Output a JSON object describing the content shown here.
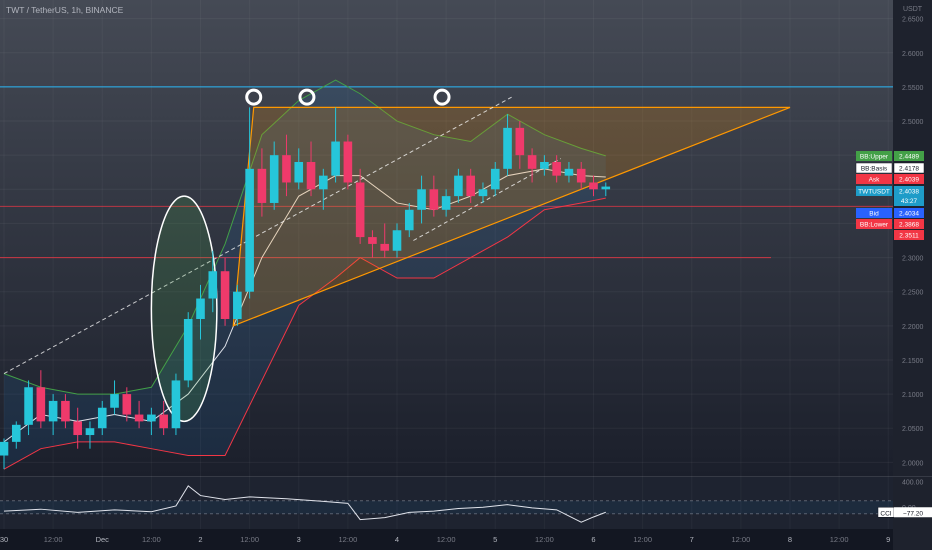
{
  "header": {
    "symbol_title": "TWT / TetherUS, 1h, BINANCE"
  },
  "price_axis": {
    "currency": "USDT",
    "ticks": [
      "2.6500",
      "2.6000",
      "2.5500",
      "2.5000",
      "2.4500",
      "2.4000",
      "2.3500",
      "2.3000",
      "2.2500",
      "2.2000",
      "2.1500",
      "2.1000",
      "2.0500",
      "2.0000"
    ]
  },
  "time_axis": {
    "ticks": [
      "30",
      "12:00",
      "Dec",
      "12:00",
      "2",
      "12:00",
      "3",
      "12:00",
      "4",
      "12:00",
      "5",
      "12:00",
      "6",
      "12:00",
      "7",
      "12:00",
      "8",
      "12:00",
      "9"
    ]
  },
  "labels": [
    {
      "key": "bb_upper",
      "name": "BB:Upper",
      "value": "2.4489",
      "color": "#43a047"
    },
    {
      "key": "bb_basis",
      "name": "BB:Basis",
      "value": "2.4178",
      "color": "#ffffff"
    },
    {
      "key": "ask",
      "name": "Ask",
      "value": "2.4039",
      "color": "#f23645"
    },
    {
      "key": "symbol",
      "name": "TWTUSDT",
      "value": "2.4038",
      "sub": "43:27",
      "color": "#1e9cc8"
    },
    {
      "key": "bid",
      "name": "Bid",
      "value": "2.4034",
      "color": "#2962ff"
    },
    {
      "key": "bb_lower",
      "name": "BB:Lower",
      "value": "2.3868",
      "color": "#f23645"
    },
    {
      "key": "extra",
      "name": "",
      "value": "2.3511",
      "color": "#f23645"
    }
  ],
  "cci_panel": {
    "name": "CCI",
    "value": "−77.20",
    "axis_ticks": [
      "400.00",
      "0.00"
    ]
  },
  "chart_data": {
    "type": "candlestick",
    "symbol": "TWT / TetherUS",
    "interval": "1h",
    "exchange": "BINANCE",
    "ylim": [
      1.98,
      2.67
    ],
    "xlim": [
      0,
      192
    ],
    "resistance_level": 2.55,
    "support_levels": [
      2.375,
      2.3
    ],
    "candles": [
      {
        "t": 0,
        "o": 2.01,
        "h": 2.035,
        "l": 1.99,
        "c": 2.03
      },
      {
        "t": 3,
        "o": 2.03,
        "h": 2.06,
        "l": 2.02,
        "c": 2.055
      },
      {
        "t": 6,
        "o": 2.055,
        "h": 2.12,
        "l": 2.04,
        "c": 2.11
      },
      {
        "t": 9,
        "o": 2.11,
        "h": 2.135,
        "l": 2.05,
        "c": 2.06
      },
      {
        "t": 12,
        "o": 2.06,
        "h": 2.1,
        "l": 2.04,
        "c": 2.09
      },
      {
        "t": 15,
        "o": 2.09,
        "h": 2.1,
        "l": 2.05,
        "c": 2.06
      },
      {
        "t": 18,
        "o": 2.06,
        "h": 2.08,
        "l": 2.02,
        "c": 2.04
      },
      {
        "t": 21,
        "o": 2.04,
        "h": 2.06,
        "l": 2.02,
        "c": 2.05
      },
      {
        "t": 24,
        "o": 2.05,
        "h": 2.09,
        "l": 2.04,
        "c": 2.08
      },
      {
        "t": 27,
        "o": 2.08,
        "h": 2.12,
        "l": 2.07,
        "c": 2.1
      },
      {
        "t": 30,
        "o": 2.1,
        "h": 2.11,
        "l": 2.06,
        "c": 2.07
      },
      {
        "t": 33,
        "o": 2.07,
        "h": 2.09,
        "l": 2.05,
        "c": 2.06
      },
      {
        "t": 36,
        "o": 2.06,
        "h": 2.08,
        "l": 2.04,
        "c": 2.07
      },
      {
        "t": 39,
        "o": 2.07,
        "h": 2.09,
        "l": 2.04,
        "c": 2.05
      },
      {
        "t": 42,
        "o": 2.05,
        "h": 2.13,
        "l": 2.04,
        "c": 2.12
      },
      {
        "t": 45,
        "o": 2.12,
        "h": 2.22,
        "l": 2.11,
        "c": 2.21
      },
      {
        "t": 48,
        "o": 2.21,
        "h": 2.26,
        "l": 2.18,
        "c": 2.24
      },
      {
        "t": 51,
        "o": 2.24,
        "h": 2.31,
        "l": 2.22,
        "c": 2.28
      },
      {
        "t": 54,
        "o": 2.28,
        "h": 2.3,
        "l": 2.2,
        "c": 2.21
      },
      {
        "t": 57,
        "o": 2.21,
        "h": 2.26,
        "l": 2.2,
        "c": 2.25
      },
      {
        "t": 60,
        "o": 2.25,
        "h": 2.52,
        "l": 2.24,
        "c": 2.43
      },
      {
        "t": 63,
        "o": 2.43,
        "h": 2.46,
        "l": 2.36,
        "c": 2.38
      },
      {
        "t": 66,
        "o": 2.38,
        "h": 2.47,
        "l": 2.37,
        "c": 2.45
      },
      {
        "t": 69,
        "o": 2.45,
        "h": 2.48,
        "l": 2.39,
        "c": 2.41
      },
      {
        "t": 72,
        "o": 2.41,
        "h": 2.46,
        "l": 2.4,
        "c": 2.44
      },
      {
        "t": 75,
        "o": 2.44,
        "h": 2.47,
        "l": 2.39,
        "c": 2.4
      },
      {
        "t": 78,
        "o": 2.4,
        "h": 2.43,
        "l": 2.37,
        "c": 2.42
      },
      {
        "t": 81,
        "o": 2.42,
        "h": 2.52,
        "l": 2.41,
        "c": 2.47
      },
      {
        "t": 84,
        "o": 2.47,
        "h": 2.48,
        "l": 2.4,
        "c": 2.41
      },
      {
        "t": 87,
        "o": 2.41,
        "h": 2.43,
        "l": 2.32,
        "c": 2.33
      },
      {
        "t": 90,
        "o": 2.33,
        "h": 2.34,
        "l": 2.3,
        "c": 2.32
      },
      {
        "t": 93,
        "o": 2.32,
        "h": 2.35,
        "l": 2.3,
        "c": 2.31
      },
      {
        "t": 96,
        "o": 2.31,
        "h": 2.35,
        "l": 2.3,
        "c": 2.34
      },
      {
        "t": 99,
        "o": 2.34,
        "h": 2.38,
        "l": 2.33,
        "c": 2.37
      },
      {
        "t": 102,
        "o": 2.37,
        "h": 2.42,
        "l": 2.35,
        "c": 2.4
      },
      {
        "t": 105,
        "o": 2.4,
        "h": 2.42,
        "l": 2.36,
        "c": 2.37
      },
      {
        "t": 108,
        "o": 2.37,
        "h": 2.4,
        "l": 2.36,
        "c": 2.39
      },
      {
        "t": 111,
        "o": 2.39,
        "h": 2.43,
        "l": 2.38,
        "c": 2.42
      },
      {
        "t": 114,
        "o": 2.42,
        "h": 2.43,
        "l": 2.38,
        "c": 2.39
      },
      {
        "t": 117,
        "o": 2.39,
        "h": 2.41,
        "l": 2.38,
        "c": 2.4
      },
      {
        "t": 120,
        "o": 2.4,
        "h": 2.44,
        "l": 2.39,
        "c": 2.43
      },
      {
        "t": 123,
        "o": 2.43,
        "h": 2.51,
        "l": 2.42,
        "c": 2.49
      },
      {
        "t": 126,
        "o": 2.49,
        "h": 2.5,
        "l": 2.43,
        "c": 2.45
      },
      {
        "t": 129,
        "o": 2.45,
        "h": 2.46,
        "l": 2.41,
        "c": 2.43
      },
      {
        "t": 132,
        "o": 2.43,
        "h": 2.45,
        "l": 2.42,
        "c": 2.44
      },
      {
        "t": 135,
        "o": 2.44,
        "h": 2.45,
        "l": 2.41,
        "c": 2.42
      },
      {
        "t": 138,
        "o": 2.42,
        "h": 2.44,
        "l": 2.41,
        "c": 2.43
      },
      {
        "t": 141,
        "o": 2.43,
        "h": 2.44,
        "l": 2.4,
        "c": 2.41
      },
      {
        "t": 144,
        "o": 2.41,
        "h": 2.42,
        "l": 2.39,
        "c": 2.4
      },
      {
        "t": 147,
        "o": 2.4,
        "h": 2.41,
        "l": 2.39,
        "c": 2.404
      }
    ],
    "bb_upper": [
      [
        0,
        2.13
      ],
      [
        9,
        2.11
      ],
      [
        18,
        2.1
      ],
      [
        27,
        2.1
      ],
      [
        36,
        2.11
      ],
      [
        45,
        2.2
      ],
      [
        54,
        2.32
      ],
      [
        63,
        2.48
      ],
      [
        72,
        2.53
      ],
      [
        81,
        2.56
      ],
      [
        87,
        2.54
      ],
      [
        96,
        2.5
      ],
      [
        105,
        2.48
      ],
      [
        114,
        2.47
      ],
      [
        123,
        2.51
      ],
      [
        132,
        2.48
      ],
      [
        141,
        2.46
      ],
      [
        147,
        2.449
      ]
    ],
    "bb_basis": [
      [
        0,
        2.03
      ],
      [
        9,
        2.07
      ],
      [
        18,
        2.06
      ],
      [
        27,
        2.07
      ],
      [
        36,
        2.06
      ],
      [
        45,
        2.1
      ],
      [
        54,
        2.17
      ],
      [
        63,
        2.3
      ],
      [
        72,
        2.39
      ],
      [
        81,
        2.42
      ],
      [
        87,
        2.42
      ],
      [
        96,
        2.38
      ],
      [
        105,
        2.37
      ],
      [
        114,
        2.39
      ],
      [
        123,
        2.42
      ],
      [
        132,
        2.43
      ],
      [
        141,
        2.42
      ],
      [
        147,
        2.418
      ]
    ],
    "bb_lower": [
      [
        0,
        1.99
      ],
      [
        9,
        2.02
      ],
      [
        18,
        2.03
      ],
      [
        27,
        2.03
      ],
      [
        36,
        2.02
      ],
      [
        45,
        2.01
      ],
      [
        54,
        2.01
      ],
      [
        63,
        2.12
      ],
      [
        72,
        2.23
      ],
      [
        81,
        2.27
      ],
      [
        87,
        2.3
      ],
      [
        96,
        2.27
      ],
      [
        105,
        2.27
      ],
      [
        114,
        2.3
      ],
      [
        123,
        2.33
      ],
      [
        132,
        2.37
      ],
      [
        141,
        2.38
      ],
      [
        147,
        2.387
      ]
    ],
    "cci": [
      [
        0,
        -60
      ],
      [
        9,
        -30
      ],
      [
        18,
        -80
      ],
      [
        27,
        -40
      ],
      [
        36,
        -70
      ],
      [
        42,
        20
      ],
      [
        45,
        330
      ],
      [
        48,
        180
      ],
      [
        54,
        120
      ],
      [
        60,
        160
      ],
      [
        69,
        130
      ],
      [
        78,
        90
      ],
      [
        84,
        60
      ],
      [
        87,
        -190
      ],
      [
        93,
        -160
      ],
      [
        99,
        -80
      ],
      [
        105,
        -60
      ],
      [
        111,
        -20
      ],
      [
        117,
        0
      ],
      [
        123,
        40
      ],
      [
        129,
        -10
      ],
      [
        135,
        -40
      ],
      [
        141,
        -230
      ],
      [
        144,
        -150
      ],
      [
        147,
        -77.2
      ]
    ],
    "cci_ylim": [
      -320,
      420
    ],
    "triangle": [
      [
        56,
        2.2
      ],
      [
        61,
        2.52
      ],
      [
        192,
        2.52
      ]
    ],
    "channel_upper": [
      [
        0,
        2.13
      ],
      [
        124,
        2.535
      ]
    ],
    "channel_lower": [
      [
        100,
        2.325
      ],
      [
        136,
        2.445
      ]
    ],
    "ellipse_annotation": {
      "t": 44,
      "price": 2.225,
      "rt": 8,
      "rprice": 0.165
    },
    "top_markers": [
      [
        61,
        2.535
      ],
      [
        74,
        2.535
      ],
      [
        107,
        2.535
      ]
    ]
  }
}
